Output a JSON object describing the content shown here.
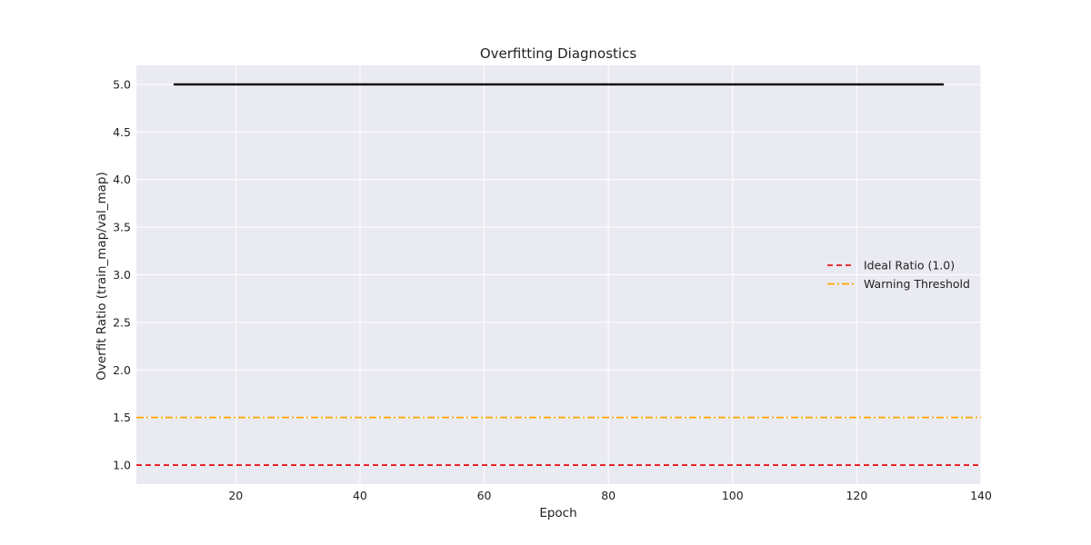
{
  "chart_data": {
    "type": "line",
    "title": "Overfitting Diagnostics",
    "xlabel": "Epoch",
    "ylabel": "Overfit Ratio (train_map/val_map)",
    "xlim": [
      4,
      140
    ],
    "ylim": [
      0.8,
      5.2
    ],
    "x_ticks": [
      20,
      40,
      60,
      80,
      100,
      120,
      140
    ],
    "y_ticks": [
      1.0,
      1.5,
      2.0,
      2.5,
      3.0,
      3.5,
      4.0,
      4.5,
      5.0
    ],
    "grid": true,
    "series": [
      {
        "name": "",
        "color": "#000000",
        "style": "solid",
        "x": [
          10,
          134
        ],
        "y": [
          5.0,
          5.0
        ]
      }
    ],
    "hlines": [
      {
        "name": "Ideal Ratio (1.0)",
        "y": 1.0,
        "color": "#e41a1c",
        "style": "dashed"
      },
      {
        "name": "Warning Threshold",
        "y": 1.5,
        "color": "#ffa500",
        "style": "dashdot"
      }
    ],
    "legend_location": "center-right",
    "background_color": "#eaeaf2"
  }
}
